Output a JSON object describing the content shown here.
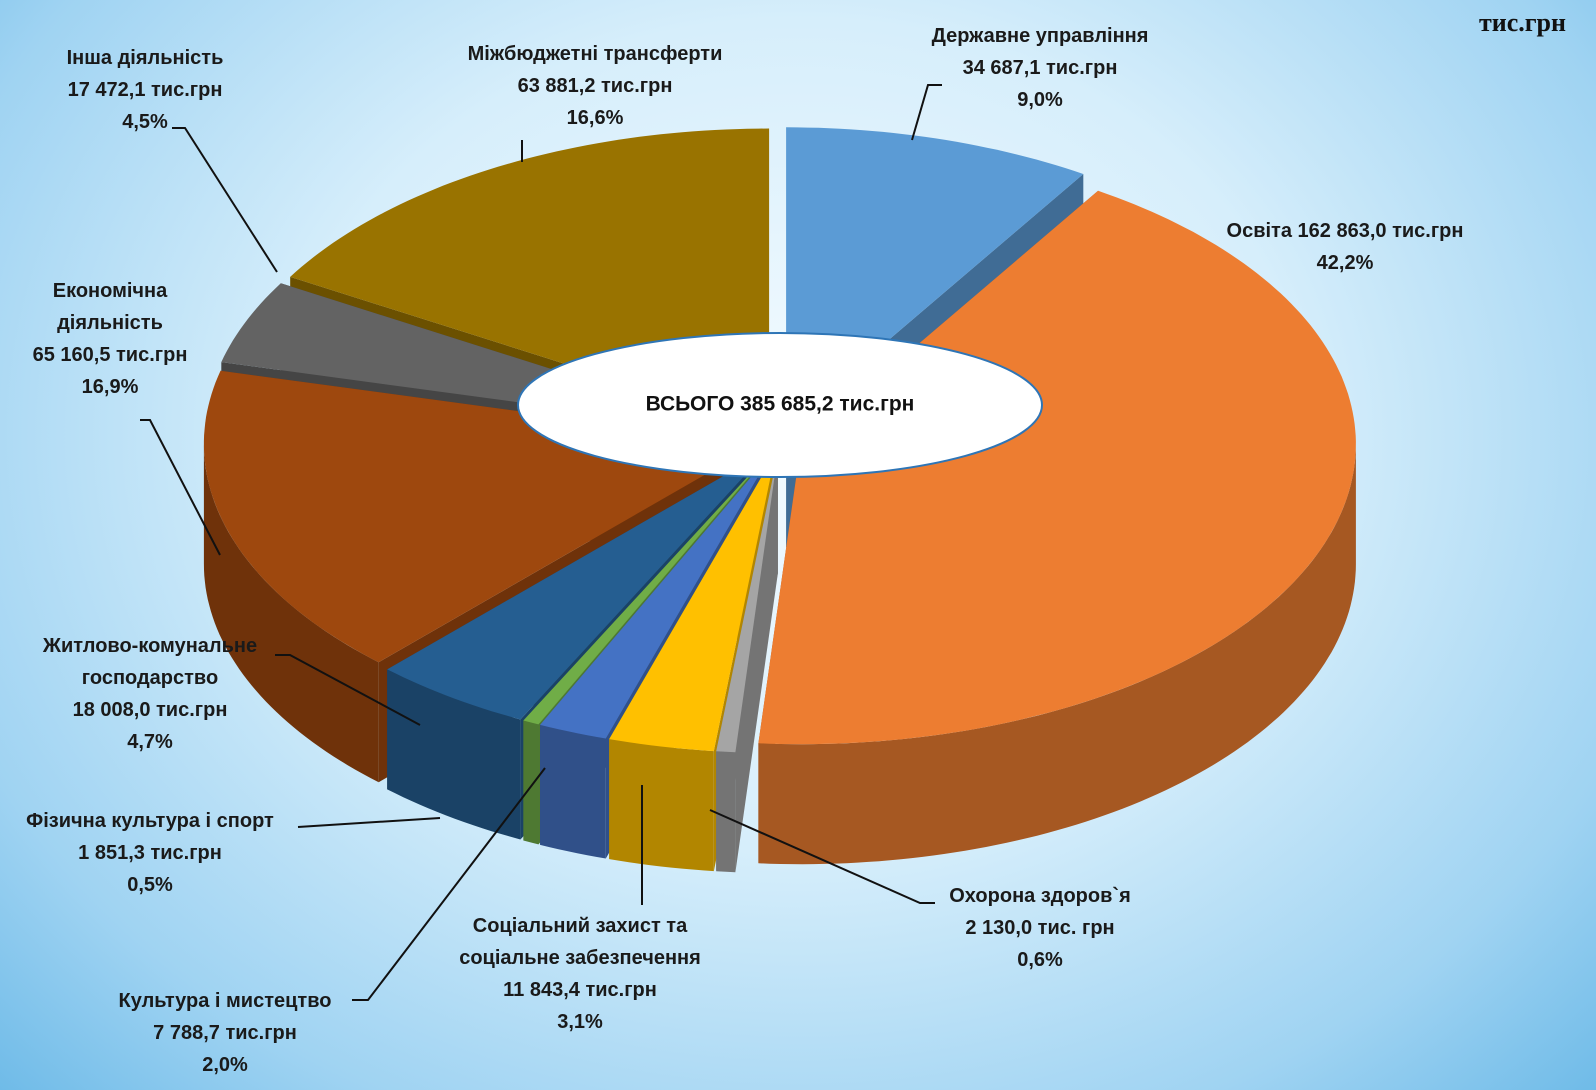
{
  "chart_data": {
    "type": "pie3d",
    "unit": "тис.грн",
    "center_label": "ВСЬОГО 385 685,2 тис.грн",
    "categories": [
      "Державне управління",
      "Освіта",
      "Охорона здоров`я",
      "Соціальний захист та соціальне забезпечення",
      "Культура і мистецтво",
      "Фізична культура і спорт",
      "Житлово-комунальне господарство",
      "Економічна діяльність",
      "Інша діяльність",
      "Міжбюджетні трансферти"
    ],
    "values": [
      34687.1,
      162863.0,
      2130.0,
      11843.4,
      7788.7,
      1851.3,
      18008.0,
      65160.5,
      17472.1,
      63881.2
    ],
    "value_labels": [
      "34 687,1 тис.грн",
      "162 863,0 тис.грн",
      "2 130,0 тис. грн",
      "11 843,4 тис.грн",
      "7 788,7 тис.грн",
      "1 851,3 тис.грн",
      "18 008,0 тис.грн",
      "65 160,5 тис.грн",
      "17 472,1 тис.грн",
      "63 881,2 тис.грн"
    ],
    "percents": [
      9.0,
      42.2,
      0.6,
      3.1,
      2.0,
      0.5,
      4.7,
      16.9,
      4.5,
      16.6
    ],
    "percent_labels": [
      "9,0%",
      "42,2%",
      "0,6%",
      "3,1%",
      "2,0%",
      "0,5%",
      "4,7%",
      "16,9%",
      "4,5%",
      "16,6%"
    ],
    "colors": [
      "#5b9bd5",
      "#ed7d31",
      "#a5a5a5",
      "#ffc000",
      "#4472c4",
      "#70ad47",
      "#255e91",
      "#9e480e",
      "#636363",
      "#997300"
    ]
  }
}
